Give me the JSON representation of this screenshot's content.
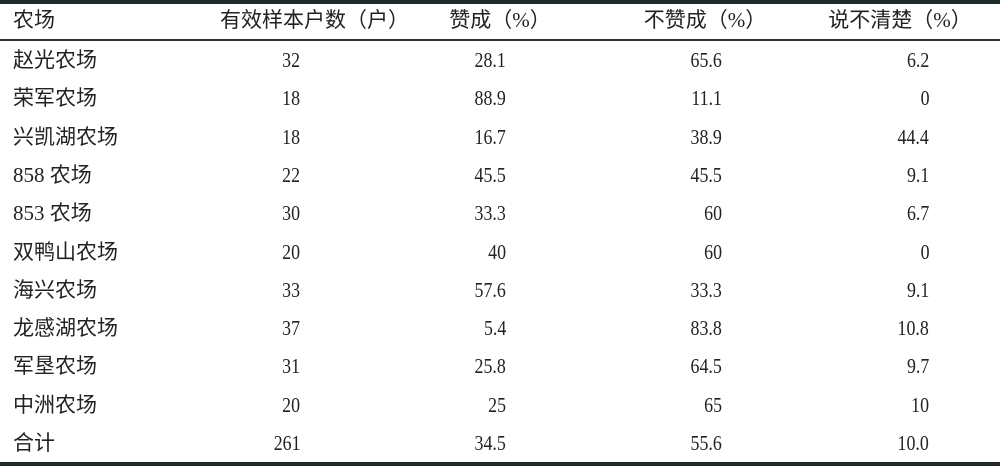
{
  "table": {
    "headers": [
      "农场",
      "有效样本户数（户）",
      "赞成（%）",
      "不赞成（%）",
      "说不清楚（%）"
    ],
    "rows": [
      [
        "赵光农场",
        "32",
        "28.1",
        "65.6",
        "6.2"
      ],
      [
        "荣军农场",
        "18",
        "88.9",
        "11.1",
        "0"
      ],
      [
        "兴凯湖农场",
        "18",
        "16.7",
        "38.9",
        "44.4"
      ],
      [
        "858 农场",
        "22",
        "45.5",
        "45.5",
        "9.1"
      ],
      [
        "853 农场",
        "30",
        "33.3",
        "60",
        "6.7"
      ],
      [
        "双鸭山农场",
        "20",
        "40",
        "60",
        "0"
      ],
      [
        "海兴农场",
        "33",
        "57.6",
        "33.3",
        "9.1"
      ],
      [
        "龙感湖农场",
        "37",
        "5.4",
        "83.8",
        "10.8"
      ],
      [
        "军垦农场",
        "31",
        "25.8",
        "64.5",
        "9.7"
      ],
      [
        "中洲农场",
        "20",
        "25",
        "65",
        "10"
      ],
      [
        "合计",
        "261",
        "34.5",
        "55.6",
        "10.0"
      ]
    ]
  }
}
